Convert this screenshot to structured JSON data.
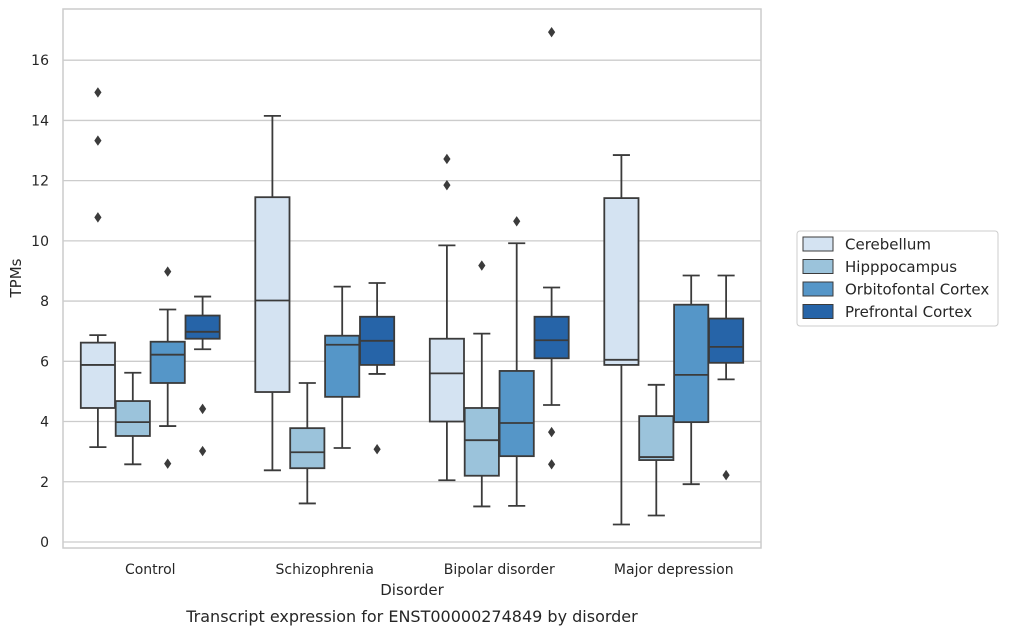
{
  "chart_data": {
    "type": "box",
    "title": "",
    "caption": "Transcript expression for ENST00000274849 by disorder",
    "xlabel": "Disorder",
    "ylabel": "TPMs",
    "ylim": [
      -0.2,
      17.7
    ],
    "yticks": [
      0,
      2,
      4,
      6,
      8,
      10,
      12,
      14,
      16
    ],
    "grid": "horizontal",
    "legend_position": "right",
    "categories": [
      "Control",
      "Schizophrenia",
      "Bipolar disorder",
      "Major depression"
    ],
    "series": [
      {
        "name": "Cerebellum",
        "color": "#d4e3f2",
        "boxes": [
          {
            "whislo": 3.15,
            "q1": 4.45,
            "med": 5.88,
            "q3": 6.62,
            "whishi": 6.87,
            "fliers": [
              10.78,
              13.33,
              14.93
            ]
          },
          {
            "whislo": 2.38,
            "q1": 4.98,
            "med": 8.02,
            "q3": 11.45,
            "whishi": 14.15,
            "fliers": []
          },
          {
            "whislo": 2.05,
            "q1": 4.0,
            "med": 5.6,
            "q3": 6.75,
            "whishi": 9.85,
            "fliers": [
              11.85,
              12.72
            ]
          },
          {
            "whislo": 0.58,
            "q1": 5.88,
            "med": 6.05,
            "q3": 11.42,
            "whishi": 12.85,
            "fliers": []
          }
        ]
      },
      {
        "name": "Hipppocampus",
        "color": "#9bc3db",
        "boxes": [
          {
            "whislo": 2.58,
            "q1": 3.52,
            "med": 3.98,
            "q3": 4.68,
            "whishi": 5.62,
            "fliers": []
          },
          {
            "whislo": 1.28,
            "q1": 2.45,
            "med": 2.98,
            "q3": 3.78,
            "whishi": 5.28,
            "fliers": []
          },
          {
            "whislo": 1.18,
            "q1": 2.2,
            "med": 3.38,
            "q3": 4.45,
            "whishi": 6.92,
            "fliers": [
              9.18
            ]
          },
          {
            "whislo": 0.88,
            "q1": 2.72,
            "med": 2.82,
            "q3": 4.18,
            "whishi": 5.22,
            "fliers": []
          }
        ]
      },
      {
        "name": "Orbitofontal Cortex",
        "color": "#5596c8",
        "boxes": [
          {
            "whislo": 3.85,
            "q1": 5.28,
            "med": 6.22,
            "q3": 6.65,
            "whishi": 7.72,
            "fliers": [
              2.6,
              8.98
            ]
          },
          {
            "whislo": 3.12,
            "q1": 4.82,
            "med": 6.55,
            "q3": 6.85,
            "whishi": 8.48,
            "fliers": []
          },
          {
            "whislo": 1.2,
            "q1": 2.85,
            "med": 3.95,
            "q3": 5.68,
            "whishi": 9.92,
            "fliers": [
              10.65
            ]
          },
          {
            "whislo": 1.92,
            "q1": 3.98,
            "med": 5.55,
            "q3": 7.88,
            "whishi": 8.85,
            "fliers": []
          }
        ]
      },
      {
        "name": "Prefrontal Cortex",
        "color": "#2664a8",
        "boxes": [
          {
            "whislo": 6.4,
            "q1": 6.75,
            "med": 6.98,
            "q3": 7.52,
            "whishi": 8.15,
            "fliers": [
              3.02,
              4.42
            ]
          },
          {
            "whislo": 5.58,
            "q1": 5.88,
            "med": 6.68,
            "q3": 7.48,
            "whishi": 8.6,
            "fliers": [
              3.08
            ]
          },
          {
            "whislo": 4.55,
            "q1": 6.1,
            "med": 6.7,
            "q3": 7.48,
            "whishi": 8.45,
            "fliers": [
              2.58,
              3.65,
              16.93
            ]
          },
          {
            "whislo": 5.4,
            "q1": 5.95,
            "med": 6.48,
            "q3": 7.42,
            "whishi": 8.85,
            "fliers": [
              2.22
            ]
          }
        ]
      }
    ]
  }
}
